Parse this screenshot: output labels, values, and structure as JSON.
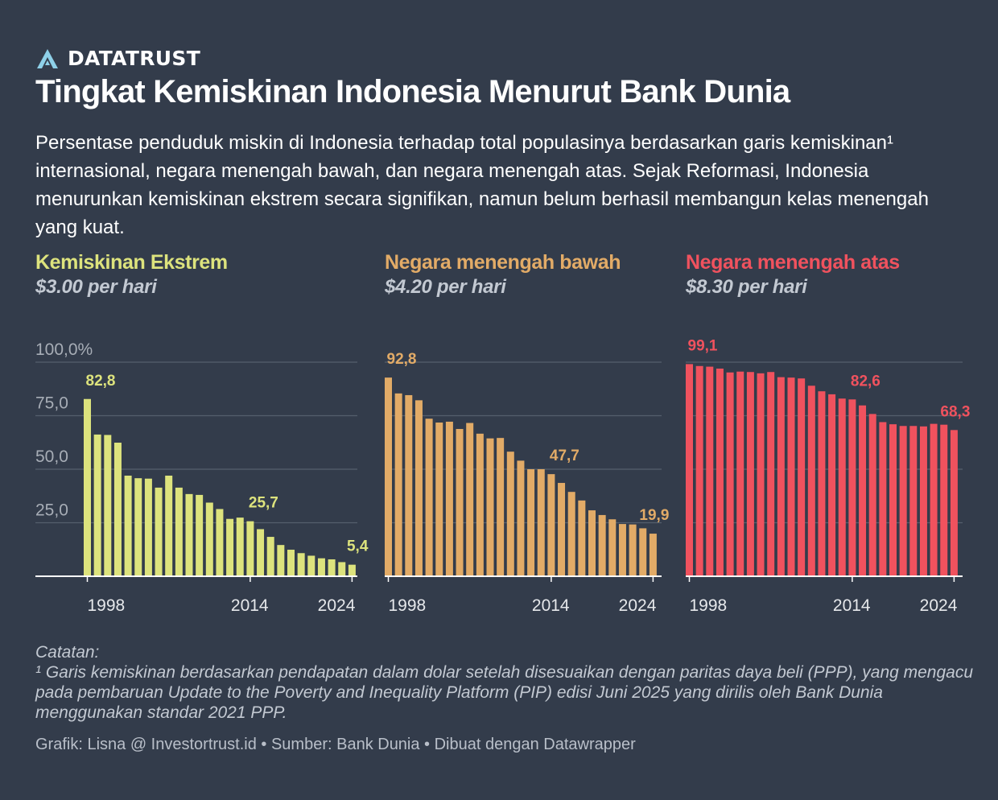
{
  "brand": {
    "name": "DATATRUST",
    "logo_icon": "triangle-a-logo-icon",
    "logo_color": "#8ed0e8"
  },
  "header": {
    "title": "Tingkat Kemiskinan Indonesia Menurut Bank Dunia",
    "subtitle": "Persentase penduduk miskin di Indonesia terhadap total populasinya berdasarkan garis kemiskinan¹ internasional, negara menengah bawah, dan negara menengah atas. Sejak Reformasi, Indonesia menurunkan kemiskinan ekstrem secara signifikan, namun belum berhasil membangun kelas menengah yang kuat."
  },
  "colors": {
    "background": "#333c4b",
    "extreme": "#dde37d",
    "lower_middle": "#e2ab67",
    "upper_middle": "#f0525e",
    "grid": "#555f6d",
    "axis": "#ffffff",
    "tick_label": "#e6e8eb",
    "y_label": "#a7adb6"
  },
  "chart_data": [
    {
      "type": "bar",
      "title": "Kemiskinan Ekstrem",
      "subtitle": "$3.00 per hari",
      "ylim": [
        0,
        100
      ],
      "yticks": [
        "100,0%",
        "75,0",
        "50,0",
        "25,0"
      ],
      "x": [
        1998,
        1999,
        2000,
        2001,
        2002,
        2003,
        2004,
        2005,
        2006,
        2007,
        2008,
        2009,
        2010,
        2011,
        2012,
        2013,
        2014,
        2015,
        2016,
        2017,
        2018,
        2019,
        2020,
        2021,
        2022,
        2023,
        2024
      ],
      "xticks": [
        "1998",
        "2014",
        "2024"
      ],
      "values": [
        82.8,
        66.2,
        66.0,
        62.4,
        47.0,
        45.8,
        45.6,
        41.4,
        47.0,
        41.4,
        38.4,
        38.0,
        34.4,
        31.4,
        26.8,
        27.4,
        25.7,
        22.0,
        18.4,
        14.6,
        12.4,
        10.8,
        9.6,
        8.4,
        7.9,
        6.6,
        5.4
      ],
      "annotations": [
        {
          "x": 1998,
          "label": "82,8"
        },
        {
          "x": 2014,
          "label": "25,7"
        },
        {
          "x": 2024,
          "label": "5,4"
        }
      ],
      "grid": true
    },
    {
      "type": "bar",
      "title": "Negara menengah bawah",
      "subtitle": "$4.20 per hari",
      "ylim": [
        0,
        100
      ],
      "x": [
        1998,
        1999,
        2000,
        2001,
        2002,
        2003,
        2004,
        2005,
        2006,
        2007,
        2008,
        2009,
        2010,
        2011,
        2012,
        2013,
        2014,
        2015,
        2016,
        2017,
        2018,
        2019,
        2020,
        2021,
        2022,
        2023,
        2024
      ],
      "xticks": [
        "1998",
        "2014",
        "2024"
      ],
      "values": [
        92.8,
        85.4,
        84.6,
        82.2,
        73.6,
        71.8,
        72.2,
        68.8,
        71.6,
        66.6,
        64.4,
        64.6,
        58.2,
        54.0,
        50.0,
        50.0,
        47.7,
        43.6,
        39.4,
        35.4,
        30.8,
        28.6,
        26.6,
        24.4,
        24.2,
        22.4,
        19.9
      ],
      "annotations": [
        {
          "x": 1998,
          "label": "92,8"
        },
        {
          "x": 2014,
          "label": "47,7"
        },
        {
          "x": 2024,
          "label": "19,9"
        }
      ],
      "grid": true
    },
    {
      "type": "bar",
      "title": "Negara menengah atas",
      "subtitle": "$8.30 per hari",
      "ylim": [
        0,
        100
      ],
      "x": [
        1998,
        1999,
        2000,
        2001,
        2002,
        2003,
        2004,
        2005,
        2006,
        2007,
        2008,
        2009,
        2010,
        2011,
        2012,
        2013,
        2014,
        2015,
        2016,
        2017,
        2018,
        2019,
        2020,
        2021,
        2022,
        2023,
        2024
      ],
      "xticks": [
        "1998",
        "2014",
        "2024"
      ],
      "values": [
        99.1,
        98.2,
        97.9,
        97.0,
        95.2,
        95.6,
        95.4,
        94.8,
        95.4,
        93.0,
        92.8,
        92.4,
        89.0,
        86.4,
        85.0,
        83.0,
        82.6,
        79.8,
        75.8,
        72.0,
        71.0,
        70.2,
        70.2,
        70.0,
        71.2,
        70.8,
        68.3
      ],
      "annotations": [
        {
          "x": 1998,
          "label": "99,1"
        },
        {
          "x": 2014,
          "label": "82,6"
        },
        {
          "x": 2024,
          "label": "68,3"
        }
      ],
      "grid": true
    }
  ],
  "notes": {
    "label": "Catatan:",
    "text": "¹ Garis kemiskinan berdasarkan pendapatan dalam dolar setelah disesuaikan dengan paritas daya beli (PPP), yang mengacu pada pembaruan Update to the Poverty and Inequality Platform (PIP) edisi Juni 2025 yang dirilis oleh Bank Dunia menggunakan standar 2021 PPP."
  },
  "footer": {
    "source": "Grafik: Lisna @ Investortrust.id • Sumber: Bank Dunia • Dibuat dengan Datawrapper"
  }
}
